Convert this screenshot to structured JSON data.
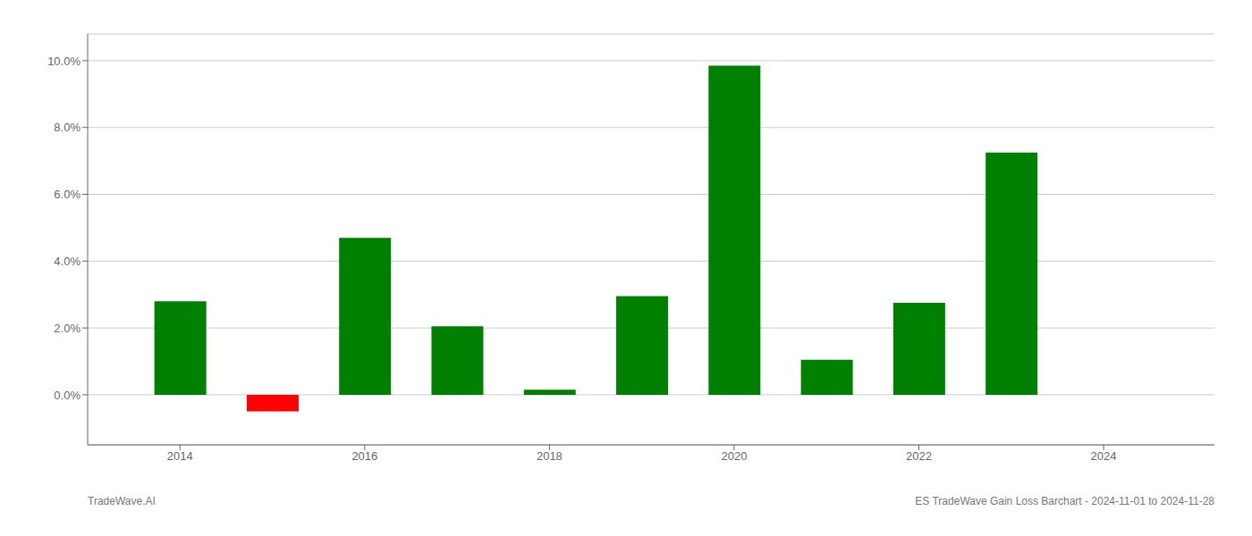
{
  "chart_data": {
    "type": "bar",
    "x": [
      2014,
      2015,
      2016,
      2017,
      2018,
      2019,
      2020,
      2021,
      2022,
      2023
    ],
    "values": [
      0.028,
      -0.005,
      0.047,
      0.0205,
      0.0015,
      0.0295,
      0.0985,
      0.0105,
      0.0275,
      0.0725
    ],
    "colors": [
      "#008000",
      "#ff0000",
      "#008000",
      "#008000",
      "#008000",
      "#008000",
      "#008000",
      "#008000",
      "#008000",
      "#008000"
    ],
    "xlim": [
      2013.0,
      2025.2
    ],
    "xticks": [
      2014,
      2016,
      2018,
      2020,
      2022,
      2024
    ],
    "ylim": [
      -0.015,
      0.108
    ],
    "yticks": [
      {
        "value": 0.0,
        "label": "0.0%"
      },
      {
        "value": 0.02,
        "label": "2.0%"
      },
      {
        "value": 0.04,
        "label": "4.0%"
      },
      {
        "value": 0.06,
        "label": "6.0%"
      },
      {
        "value": 0.08,
        "label": "8.0%"
      },
      {
        "value": 0.1,
        "label": "10.0%"
      }
    ],
    "grid": true,
    "annotations": [
      "TradeWave.AI",
      "ES TradeWave Gain Loss Barchart - 2024-11-01 to 2024-11-28"
    ]
  }
}
